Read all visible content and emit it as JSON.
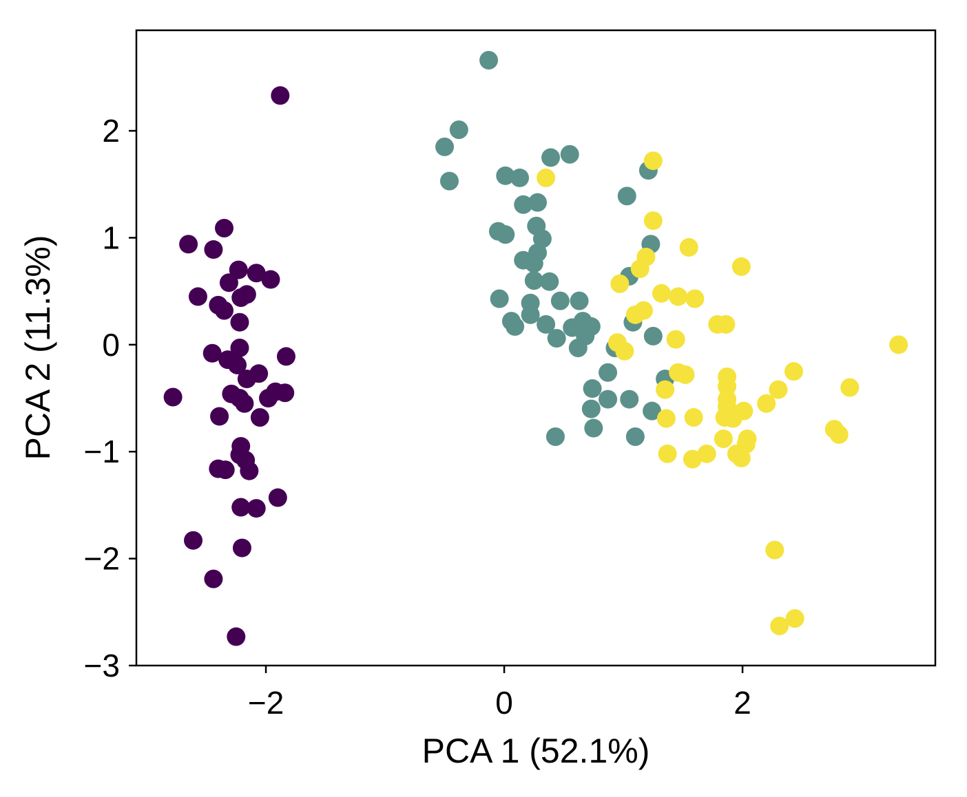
{
  "chart_data": {
    "type": "scatter",
    "xlabel": "PCA 1 (52.1%)",
    "ylabel": "PCA 2 (11.3%)",
    "xlim": [
      -3.087,
      3.618
    ],
    "ylim": [
      -3,
      2.94
    ],
    "xticks": [
      {
        "value": -2,
        "label": "−2"
      },
      0,
      2
    ],
    "yticks": [
      {
        "value": -3,
        "label": "−3"
      },
      {
        "value": -2,
        "label": "−2"
      },
      {
        "value": -1,
        "label": "−1"
      },
      0,
      1,
      2
    ],
    "series": [
      {
        "color": "#440154",
        "x": [
          -1.88,
          -2.35,
          -2.65,
          -2.44,
          -2.23,
          -2.08,
          -1.96,
          -2.31,
          -2.57,
          -2.16,
          -2.21,
          -2.4,
          -2.35,
          -2.22,
          -2.45,
          -2.22,
          -2.32,
          -1.83,
          -2.24,
          -2.06,
          -2.16,
          -2.78,
          -2.29,
          -2.22,
          -1.92,
          -1.84,
          -1.98,
          -2.18,
          -2.39,
          -2.05,
          -2.21,
          -2.22,
          -2.17,
          -2.4,
          -2.34,
          -2.14,
          -2.21,
          -2.08,
          -1.9,
          -2.61,
          -2.2,
          -2.44,
          -2.25
        ],
        "y": [
          2.33,
          1.09,
          0.94,
          0.89,
          0.7,
          0.67,
          0.61,
          0.58,
          0.45,
          0.47,
          0.44,
          0.37,
          0.32,
          0.21,
          -0.08,
          -0.03,
          -0.14,
          -0.11,
          -0.19,
          -0.27,
          -0.32,
          -0.49,
          -0.46,
          -0.5,
          -0.44,
          -0.45,
          -0.5,
          -0.55,
          -0.67,
          -0.68,
          -0.95,
          -1.03,
          -1.08,
          -1.16,
          -1.17,
          -1.18,
          -1.52,
          -1.53,
          -1.43,
          -1.83,
          -1.9,
          -2.19,
          -2.73
        ]
      },
      {
        "color": "#5b918a",
        "x": [
          -0.13,
          -0.38,
          -0.5,
          -0.46,
          0.39,
          0.55,
          0.01,
          0.13,
          1.21,
          0.16,
          0.28,
          1.03,
          0.27,
          -0.05,
          0.01,
          0.32,
          1.23,
          0.28,
          0.16,
          0.25,
          1.05,
          0.25,
          0.38,
          -0.04,
          0.47,
          0.63,
          0.22,
          0.22,
          0.06,
          0.09,
          0.35,
          0.66,
          0.57,
          0.73,
          0.68,
          0.44,
          1.08,
          1.25,
          0.62,
          0.93,
          1.35,
          0.87,
          0.74,
          0.87,
          1.05,
          0.73,
          1.24,
          0.75,
          0.43,
          1.1
        ],
        "y": [
          2.66,
          2.01,
          1.85,
          1.53,
          1.75,
          1.78,
          1.58,
          1.56,
          1.63,
          1.31,
          1.33,
          1.39,
          1.11,
          1.06,
          1.03,
          0.99,
          0.94,
          0.86,
          0.79,
          0.76,
          0.64,
          0.6,
          0.59,
          0.43,
          0.41,
          0.41,
          0.39,
          0.28,
          0.22,
          0.17,
          0.19,
          0.22,
          0.16,
          0.17,
          0.08,
          0.06,
          0.21,
          0.08,
          -0.03,
          -0.03,
          -0.32,
          -0.26,
          -0.41,
          -0.51,
          -0.51,
          -0.6,
          -0.62,
          -0.78,
          -0.86,
          -0.86
        ]
      },
      {
        "color": "#f5e23c",
        "x": [
          1.25,
          0.35,
          1.25,
          1.55,
          1.99,
          1.19,
          1.14,
          0.97,
          1.32,
          1.46,
          1.6,
          1.17,
          1.1,
          1.79,
          1.86,
          3.31,
          1.44,
          0.95,
          1.01,
          2.43,
          1.46,
          1.52,
          1.87,
          1.87,
          2.9,
          2.3,
          1.35,
          1.87,
          2.2,
          1.87,
          2.01,
          1.36,
          1.59,
          1.85,
          1.92,
          2.77,
          2.81,
          1.84,
          2.04,
          2.03,
          1.37,
          1.7,
          1.95,
          1.99,
          1.58,
          2.27,
          2.31,
          2.44
        ],
        "y": [
          1.72,
          1.56,
          1.16,
          0.91,
          0.73,
          0.82,
          0.71,
          0.57,
          0.48,
          0.45,
          0.43,
          0.32,
          0.28,
          0.19,
          0.19,
          0.0,
          0.05,
          0.02,
          -0.06,
          -0.25,
          -0.26,
          -0.28,
          -0.3,
          -0.39,
          -0.4,
          -0.42,
          -0.42,
          -0.51,
          -0.55,
          -0.58,
          -0.62,
          -0.69,
          -0.68,
          -0.68,
          -0.69,
          -0.79,
          -0.84,
          -0.88,
          -0.88,
          -0.93,
          -1.02,
          -1.02,
          -1.02,
          -1.06,
          -1.07,
          -1.92,
          -2.63,
          -2.56
        ]
      }
    ]
  }
}
